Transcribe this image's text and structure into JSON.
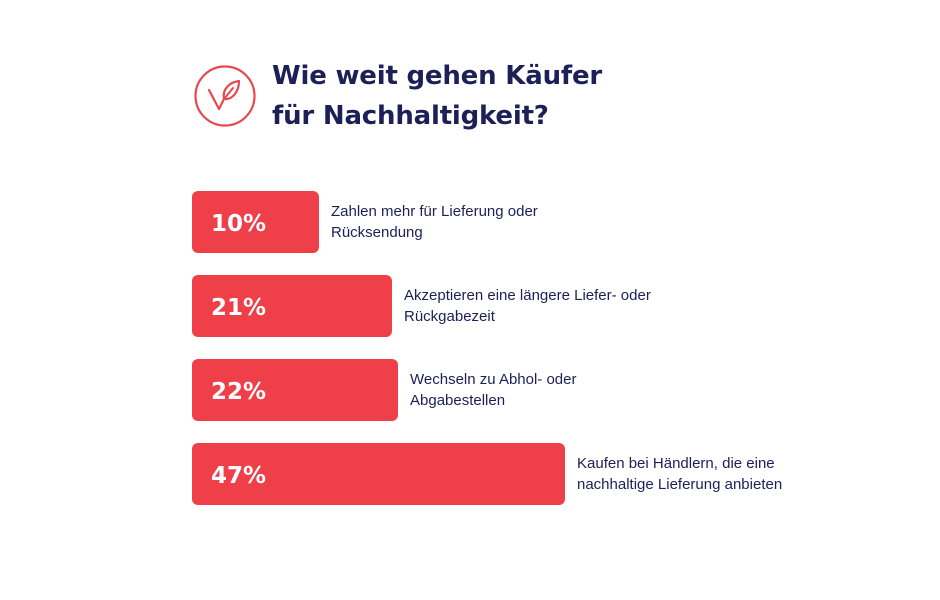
{
  "title_lines": [
    "Wie weit gehen Käufer",
    "für Nachhaltigkeit?"
  ],
  "colors": {
    "bar": "#ef404a",
    "title": "#1c2057",
    "text": "#1c2057",
    "icon": "#e8474f"
  },
  "icon": "leaf-check-icon",
  "chart_data": {
    "type": "bar",
    "orientation": "horizontal",
    "title": "Wie weit gehen Käufer für Nachhaltigkeit?",
    "unit": "%",
    "grid": false,
    "categories": [
      [
        "Zahlen mehr für Lieferung oder",
        "Rücksendung"
      ],
      [
        "Akzeptieren eine längere Liefer- oder",
        "Rückgabezeit"
      ],
      [
        "Wechseln zu Abhol- oder",
        "Abgabestellen"
      ],
      [
        "Kaufen bei Händlern, die eine",
        "nachhaltige Lieferung anbieten"
      ]
    ],
    "values": [
      10,
      21,
      22,
      47
    ],
    "value_labels": [
      "10%",
      "21%",
      "22%",
      "47%"
    ]
  }
}
